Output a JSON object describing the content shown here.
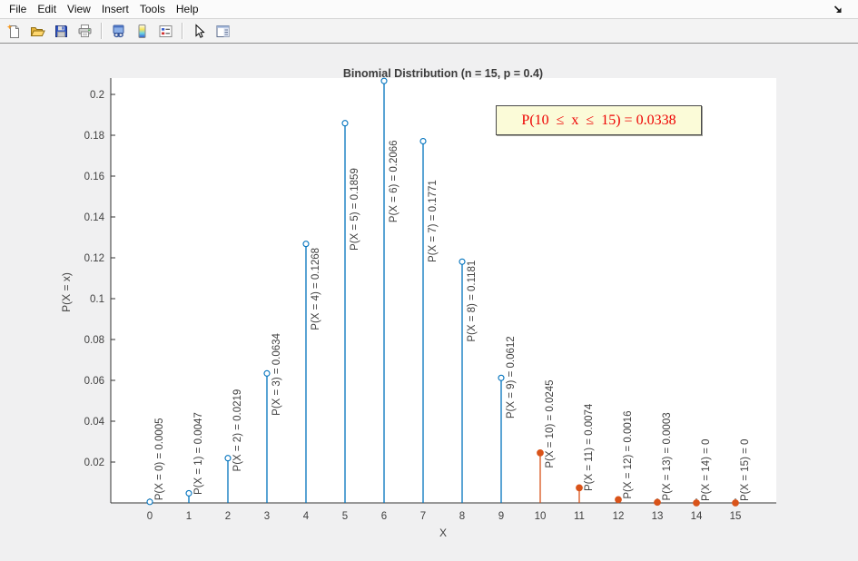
{
  "menu_bar": {
    "items": [
      "File",
      "Edit",
      "View",
      "Insert",
      "Tools",
      "Help"
    ]
  },
  "toolbar": {
    "buttons": [
      {
        "name": "new-figure",
        "icon": "new-document-icon"
      },
      {
        "name": "open-file",
        "icon": "open-folder-icon"
      },
      {
        "name": "save-figure",
        "icon": "save-icon"
      },
      {
        "name": "print-figure",
        "icon": "print-icon"
      },
      {
        "name": "link-windows",
        "icon": "linked-windows-icon"
      },
      {
        "name": "insert-colorbar",
        "icon": "colorbar-icon"
      },
      {
        "name": "insert-legend",
        "icon": "legend-icon"
      },
      {
        "name": "edit-plot",
        "icon": "pointer-icon"
      },
      {
        "name": "property-inspector",
        "icon": "panel-icon"
      }
    ]
  },
  "chart_data": {
    "type": "stem",
    "title": "Binomial Distribution (n = 15, p = 0.4)",
    "xlabel": "X",
    "ylabel": "P(X = x)",
    "x": [
      0,
      1,
      2,
      3,
      4,
      5,
      6,
      7,
      8,
      9,
      10,
      11,
      12,
      13,
      14,
      15
    ],
    "values": [
      0.0005,
      0.0047,
      0.0219,
      0.0634,
      0.1268,
      0.1859,
      0.2066,
      0.1771,
      0.1181,
      0.0612,
      0.0245,
      0.0074,
      0.0016,
      0.0003,
      0,
      0
    ],
    "point_labels": [
      "P(X = 0) = 0.0005",
      "P(X = 1) = 0.0047",
      "P(X = 2) = 0.0219",
      "P(X = 3) = 0.0634",
      "P(X = 4) = 0.1268",
      "P(X = 5) = 0.1859",
      "P(X = 6) = 0.2066",
      "P(X = 7) = 0.1771",
      "P(X = 8) = 0.1181",
      "P(X = 9) = 0.0612",
      "P(X = 10) = 0.0245",
      "P(X = 11) = 0.0074",
      "P(X = 12) = 0.0016",
      "P(X = 13) = 0.0003",
      "P(X = 14) = 0",
      "P(X = 15) = 0"
    ],
    "series": [
      {
        "name": "x from 0 to 9",
        "color": "#0072BD",
        "marker": "open-circle",
        "x_range": [
          0,
          9
        ]
      },
      {
        "name": "x from 10 to 15",
        "color": "#D95319",
        "marker": "filled-circle",
        "x_range": [
          10,
          15
        ]
      }
    ],
    "xlim": [
      -1,
      16
    ],
    "ylim": [
      0,
      0.208
    ],
    "grid": false,
    "legend": "none",
    "xticks": [
      "0",
      "1",
      "2",
      "3",
      "4",
      "5",
      "6",
      "7",
      "8",
      "9",
      "10",
      "11",
      "12",
      "13",
      "14",
      "15"
    ],
    "yticks": [
      {
        "value": 0.02,
        "label": "0.02"
      },
      {
        "value": 0.04,
        "label": "0.04"
      },
      {
        "value": 0.06,
        "label": "0.06"
      },
      {
        "value": 0.08,
        "label": "0.08"
      },
      {
        "value": 0.1,
        "label": "0.1"
      },
      {
        "value": 0.12,
        "label": "0.12"
      },
      {
        "value": 0.14,
        "label": "0.14"
      },
      {
        "value": 0.16,
        "label": "0.16"
      },
      {
        "value": 0.18,
        "label": "0.18"
      },
      {
        "value": 0.2,
        "label": "0.2"
      }
    ],
    "annotation": {
      "text": "P(10  ≤  x  ≤  15) = 0.0338",
      "text_color": "#ee0000",
      "background": "#fbfbd8",
      "border_color": "#4a4a4a"
    },
    "axis_color": "#333333",
    "label_color": "#404040"
  }
}
